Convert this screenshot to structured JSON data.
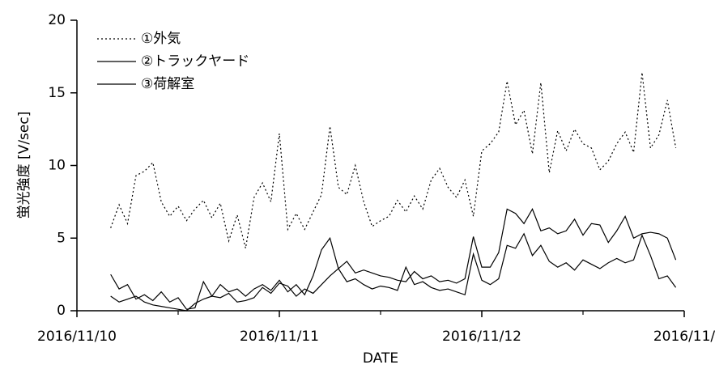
{
  "chart_data": {
    "type": "line",
    "xlabel": "DATE",
    "ylabel": "蛍光強度 [V/sec]",
    "x": [
      4,
      5,
      6,
      7,
      8,
      9,
      10,
      11,
      12,
      13,
      14,
      15,
      16,
      17,
      18,
      19,
      20,
      21,
      22,
      23,
      24,
      25,
      26,
      27,
      28,
      29,
      30,
      31,
      32,
      33,
      34,
      35,
      36,
      37,
      38,
      39,
      40,
      41,
      42,
      43,
      44,
      45,
      46,
      47,
      48,
      49,
      50,
      51,
      52,
      53,
      54,
      55,
      56,
      57,
      58,
      59,
      60,
      61,
      62,
      63,
      64,
      65,
      66,
      67,
      68,
      69,
      70,
      71
    ],
    "series": [
      {
        "name": "①外気",
        "color": "#000000",
        "dash": "dotted",
        "values": [
          5.7,
          7.3,
          6.0,
          9.3,
          9.6,
          10.2,
          7.5,
          6.5,
          7.2,
          6.2,
          7.0,
          7.6,
          6.4,
          7.4,
          4.8,
          6.6,
          4.3,
          7.8,
          8.8,
          7.5,
          12.2,
          5.6,
          6.7,
          5.6,
          6.8,
          8.0,
          12.7,
          8.5,
          8.0,
          10.0,
          7.5,
          5.8,
          6.2,
          6.5,
          7.6,
          6.8,
          7.9,
          7.0,
          9.0,
          9.8,
          8.5,
          7.8,
          9.0,
          6.5,
          11.0,
          11.5,
          12.3,
          15.8,
          12.8,
          13.8,
          10.8,
          15.7,
          9.5,
          12.4,
          11.0,
          12.5,
          11.5,
          11.2,
          9.7,
          10.3,
          11.5,
          12.3,
          10.9,
          16.4,
          11.2,
          12.1,
          14.5,
          11.2
        ]
      },
      {
        "name": "②トラックヤード",
        "color": "#000000",
        "dash": "solid",
        "values": [
          2.5,
          1.5,
          1.8,
          0.8,
          1.1,
          0.7,
          1.3,
          0.6,
          0.9,
          0.1,
          0.2,
          2.0,
          1.0,
          1.8,
          1.3,
          1.5,
          1.0,
          1.5,
          1.8,
          1.4,
          2.1,
          1.3,
          1.8,
          1.1,
          2.4,
          4.2,
          5.0,
          2.9,
          3.4,
          2.6,
          2.8,
          2.6,
          2.4,
          2.3,
          2.1,
          2.0,
          2.7,
          2.2,
          2.4,
          2.0,
          2.1,
          1.9,
          2.2,
          5.1,
          3.0,
          3.0,
          4.0,
          7.0,
          6.7,
          6.0,
          7.0,
          5.5,
          5.7,
          5.3,
          5.5,
          6.3,
          5.2,
          6.0,
          5.9,
          4.7,
          5.5,
          6.5,
          5.0,
          5.3,
          5.4,
          5.3,
          5.0,
          3.5
        ]
      },
      {
        "name": "③荷解室",
        "color": "#000000",
        "dash": "solid",
        "values": [
          1.0,
          0.6,
          0.8,
          1.0,
          0.6,
          0.4,
          0.3,
          0.2,
          0.1,
          0.0,
          0.5,
          0.8,
          1.0,
          0.9,
          1.2,
          0.6,
          0.7,
          0.9,
          1.6,
          1.2,
          1.9,
          1.7,
          1.0,
          1.5,
          1.2,
          1.8,
          2.4,
          2.9,
          2.0,
          2.2,
          1.8,
          1.5,
          1.7,
          1.6,
          1.4,
          3.0,
          1.8,
          2.0,
          1.6,
          1.4,
          1.5,
          1.3,
          1.1,
          3.9,
          2.1,
          1.8,
          2.2,
          4.5,
          4.3,
          5.3,
          3.8,
          4.5,
          3.4,
          3.0,
          3.3,
          2.8,
          3.5,
          3.2,
          2.9,
          3.3,
          3.6,
          3.3,
          3.5,
          5.2,
          3.8,
          2.2,
          2.4,
          1.6
        ]
      }
    ],
    "xlim": [
      0,
      72
    ],
    "xticks": [
      {
        "value": 0,
        "label": "2016/11/10"
      },
      {
        "value": 24,
        "label": "2016/11/11"
      },
      {
        "value": 48,
        "label": "2016/11/12"
      },
      {
        "value": 72,
        "label": "2016/11/"
      }
    ],
    "xminorticks": [
      12,
      36,
      60
    ],
    "ylim": [
      0,
      20
    ],
    "yticks": [
      0,
      5,
      10,
      15,
      20
    ],
    "legend": "upper left",
    "grid": false
  }
}
